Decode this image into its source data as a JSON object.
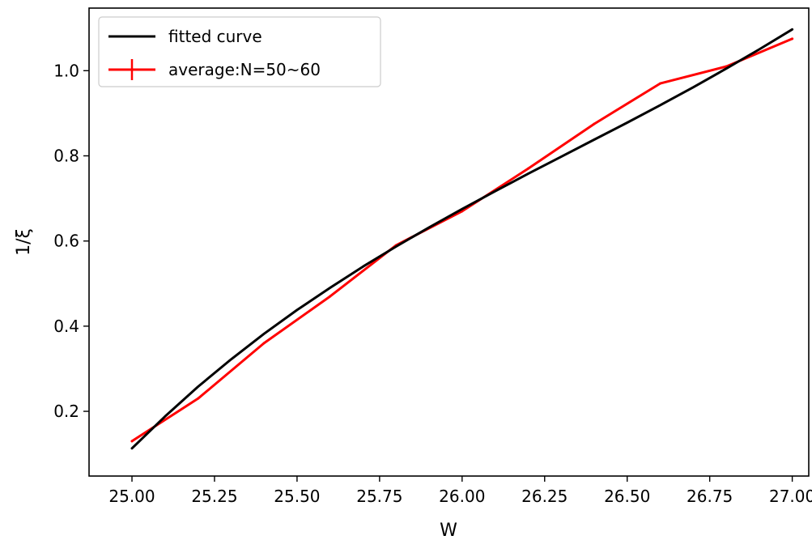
{
  "chart_data": {
    "type": "line",
    "title": "",
    "xlabel": "W",
    "ylabel": "1/ξ",
    "xlim": [
      24.87,
      27.05
    ],
    "ylim": [
      0.048,
      1.147
    ],
    "xticks": [
      25.0,
      25.25,
      25.5,
      25.75,
      26.0,
      26.25,
      26.5,
      26.75,
      27.0
    ],
    "xtick_labels": [
      "25.00",
      "25.25",
      "25.50",
      "25.75",
      "26.00",
      "26.25",
      "26.50",
      "26.75",
      "27.00"
    ],
    "yticks": [
      0.2,
      0.4,
      0.6,
      0.8,
      1.0
    ],
    "ytick_labels": [
      "0.2",
      "0.4",
      "0.6",
      "0.8",
      "1.0"
    ],
    "grid": false,
    "legend": "top-left",
    "series": [
      {
        "name": "fitted curve",
        "color": "#000000",
        "marker": "line",
        "x": [
          25.0,
          25.1,
          25.2,
          25.3,
          25.4,
          25.5,
          25.6,
          25.7,
          25.8,
          25.9,
          26.0,
          26.1,
          26.2,
          26.3,
          26.4,
          26.5,
          26.6,
          26.7,
          26.8,
          26.9,
          27.0
        ],
        "values": [
          0.113,
          0.188,
          0.258,
          0.322,
          0.382,
          0.438,
          0.49,
          0.54,
          0.587,
          0.632,
          0.675,
          0.717,
          0.758,
          0.798,
          0.838,
          0.878,
          0.919,
          0.961,
          1.005,
          1.05,
          1.097
        ]
      },
      {
        "name": "average:N=50~60",
        "color": "#ff0000",
        "marker": "errorbar",
        "x": [
          25.0,
          25.2,
          25.4,
          25.6,
          25.8,
          26.0,
          26.2,
          26.4,
          26.6,
          26.8,
          27.0
        ],
        "values": [
          0.13,
          0.23,
          0.36,
          0.47,
          0.59,
          0.67,
          0.77,
          0.875,
          0.97,
          1.01,
          1.075
        ]
      }
    ]
  }
}
